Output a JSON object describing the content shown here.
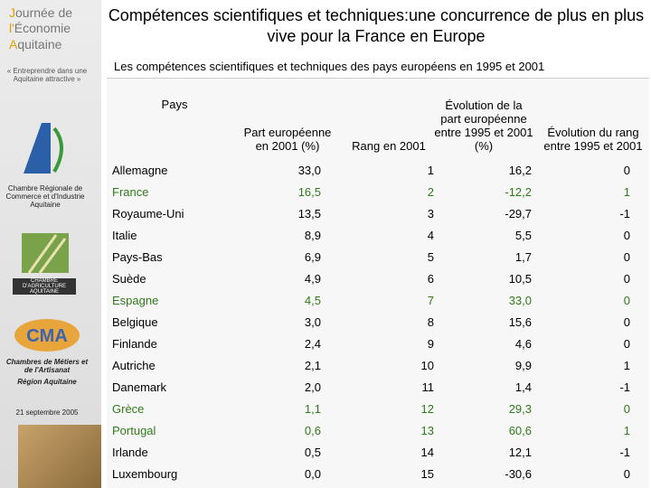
{
  "sidebar": {
    "event_title": [
      "Journée de",
      "l'Économie",
      "Aquitaine"
    ],
    "tagline": "« Entreprendre dans une Aquitaine attractive »",
    "logos": [
      "Chambre Régionale de Commerce et d'Industrie Aquitaine",
      "CHAMBRE D'AGRICULTURE AQUITAINE",
      "Chambres de Métiers et de l'Artisanat",
      "Région Aquitaine"
    ],
    "date": "21 septembre 2005"
  },
  "title": "Compétences scientifiques et techniques:une concurrence de plus en plus vive pour la France en Europe",
  "subtitle": "Les compétences scientifiques et techniques des pays européens en 1995 et 2001",
  "table": {
    "columns": [
      "Pays",
      "Part européenne en 2001 (%)",
      "Rang en 2001",
      "Évolution de la part européenne entre 1995 et 2001 (%)",
      "Évolution du rang entre 1995 et 2001"
    ],
    "rows": [
      [
        "Allemagne",
        "33,0",
        "1",
        "16,2",
        "0"
      ],
      [
        "France",
        "16,5",
        "2",
        "-12,2",
        "1"
      ],
      [
        "Royaume-Uni",
        "13,5",
        "3",
        "-29,7",
        "-1"
      ],
      [
        "Italie",
        "8,9",
        "4",
        "5,5",
        "0"
      ],
      [
        "Pays-Bas",
        "6,9",
        "5",
        "1,7",
        "0"
      ],
      [
        "Suède",
        "4,9",
        "6",
        "10,5",
        "0"
      ],
      [
        "Espagne",
        "4,5",
        "7",
        "33,0",
        "0"
      ],
      [
        "Belgique",
        "3,0",
        "8",
        "15,6",
        "0"
      ],
      [
        "Finlande",
        "2,4",
        "9",
        "4,6",
        "0"
      ],
      [
        "Autriche",
        "2,1",
        "10",
        "9,9",
        "1"
      ],
      [
        "Danemark",
        "2,0",
        "11",
        "1,4",
        "-1"
      ],
      [
        "Grèce",
        "1,1",
        "12",
        "29,3",
        "0"
      ],
      [
        "Portugal",
        "0,6",
        "13",
        "60,6",
        "1"
      ],
      [
        "Irlande",
        "0,5",
        "14",
        "12,1",
        "-1"
      ],
      [
        "Luxembourg",
        "0,0",
        "15",
        "-30,6",
        "0"
      ]
    ],
    "row_colors": [
      "#000000",
      "#2f7a1a",
      "#000000",
      "#000000",
      "#000000",
      "#000000",
      "#2f7a1a",
      "#000000",
      "#000000",
      "#000000",
      "#000000",
      "#2f7a1a",
      "#2f7a1a",
      "#000000",
      "#000000"
    ]
  }
}
